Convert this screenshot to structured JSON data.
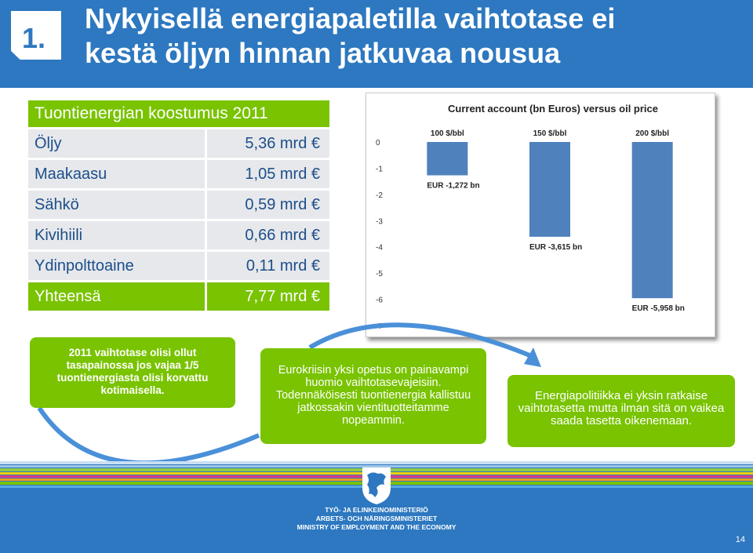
{
  "header": {
    "number": "1.",
    "title_line1": "Nykyisellä energiapaletilla vaihtotase ei",
    "title_line2": "kestä öljyn hinnan jatkuvaa nousua"
  },
  "energy_table": {
    "heading": "Tuontienergian koostumus 2011",
    "rows": [
      {
        "name": "Öljy",
        "value": "5,36 mrd €"
      },
      {
        "name": "Maakaasu",
        "value": "1,05 mrd €"
      },
      {
        "name": "Sähkö",
        "value": "0,59 mrd €"
      },
      {
        "name": "Kivihiili",
        "value": "0,66 mrd €"
      },
      {
        "name": "Ydinpolttoaine",
        "value": "0,11 mrd €"
      }
    ],
    "total": {
      "name": "Yhteensä",
      "value": "7,77 mrd €"
    }
  },
  "chart_data": {
    "type": "bar",
    "title": "Current account (bn Euros) versus oil price",
    "categories": [
      "100 $/bbl",
      "150 $/bbl",
      "200 $/bbl"
    ],
    "values": [
      -1.272,
      -3.615,
      -5.958
    ],
    "data_labels": [
      "EUR -1,272 bn",
      "EUR -3,615 bn",
      "EUR -5,958 bn"
    ],
    "ylim": [
      -7,
      0
    ],
    "yticks": [
      "0",
      "-1",
      "-2",
      "-3",
      "-4",
      "-5",
      "-6",
      "-7"
    ],
    "bar_color": "#4f81bd",
    "xlabel": "",
    "ylabel": ""
  },
  "boxes": {
    "box1": "2011 vaihtotase olisi ollut tasapainossa jos vajaa 1/5 tuontienergiasta olisi korvattu kotimaisella.",
    "box2": "Eurokriisin yksi opetus on painavampi huomio vaihtotasevajeisiin. Todennäköisesti tuontienergia kallistuu jatkossakin vientituotteitamme nopeammin.",
    "box3": "Energiapolitiikka ei yksin ratkaise vaihtotasetta mutta ilman sitä on vaikea saada tasetta  oikenemaan."
  },
  "footer": {
    "ministry_fi": "TYÖ- JA ELINKEINOMINISTERIÖ",
    "ministry_sv": "ARBETS- OCH NÄRINGSMINISTERIET",
    "ministry_en": "MINISTRY OF EMPLOYMENT AND THE ECONOMY",
    "page_number": "14"
  },
  "colors": {
    "brand_blue": "#2d78c0",
    "accent_green": "#79c300",
    "table_row": "#e6e8ec",
    "table_text": "#1d4e89"
  }
}
